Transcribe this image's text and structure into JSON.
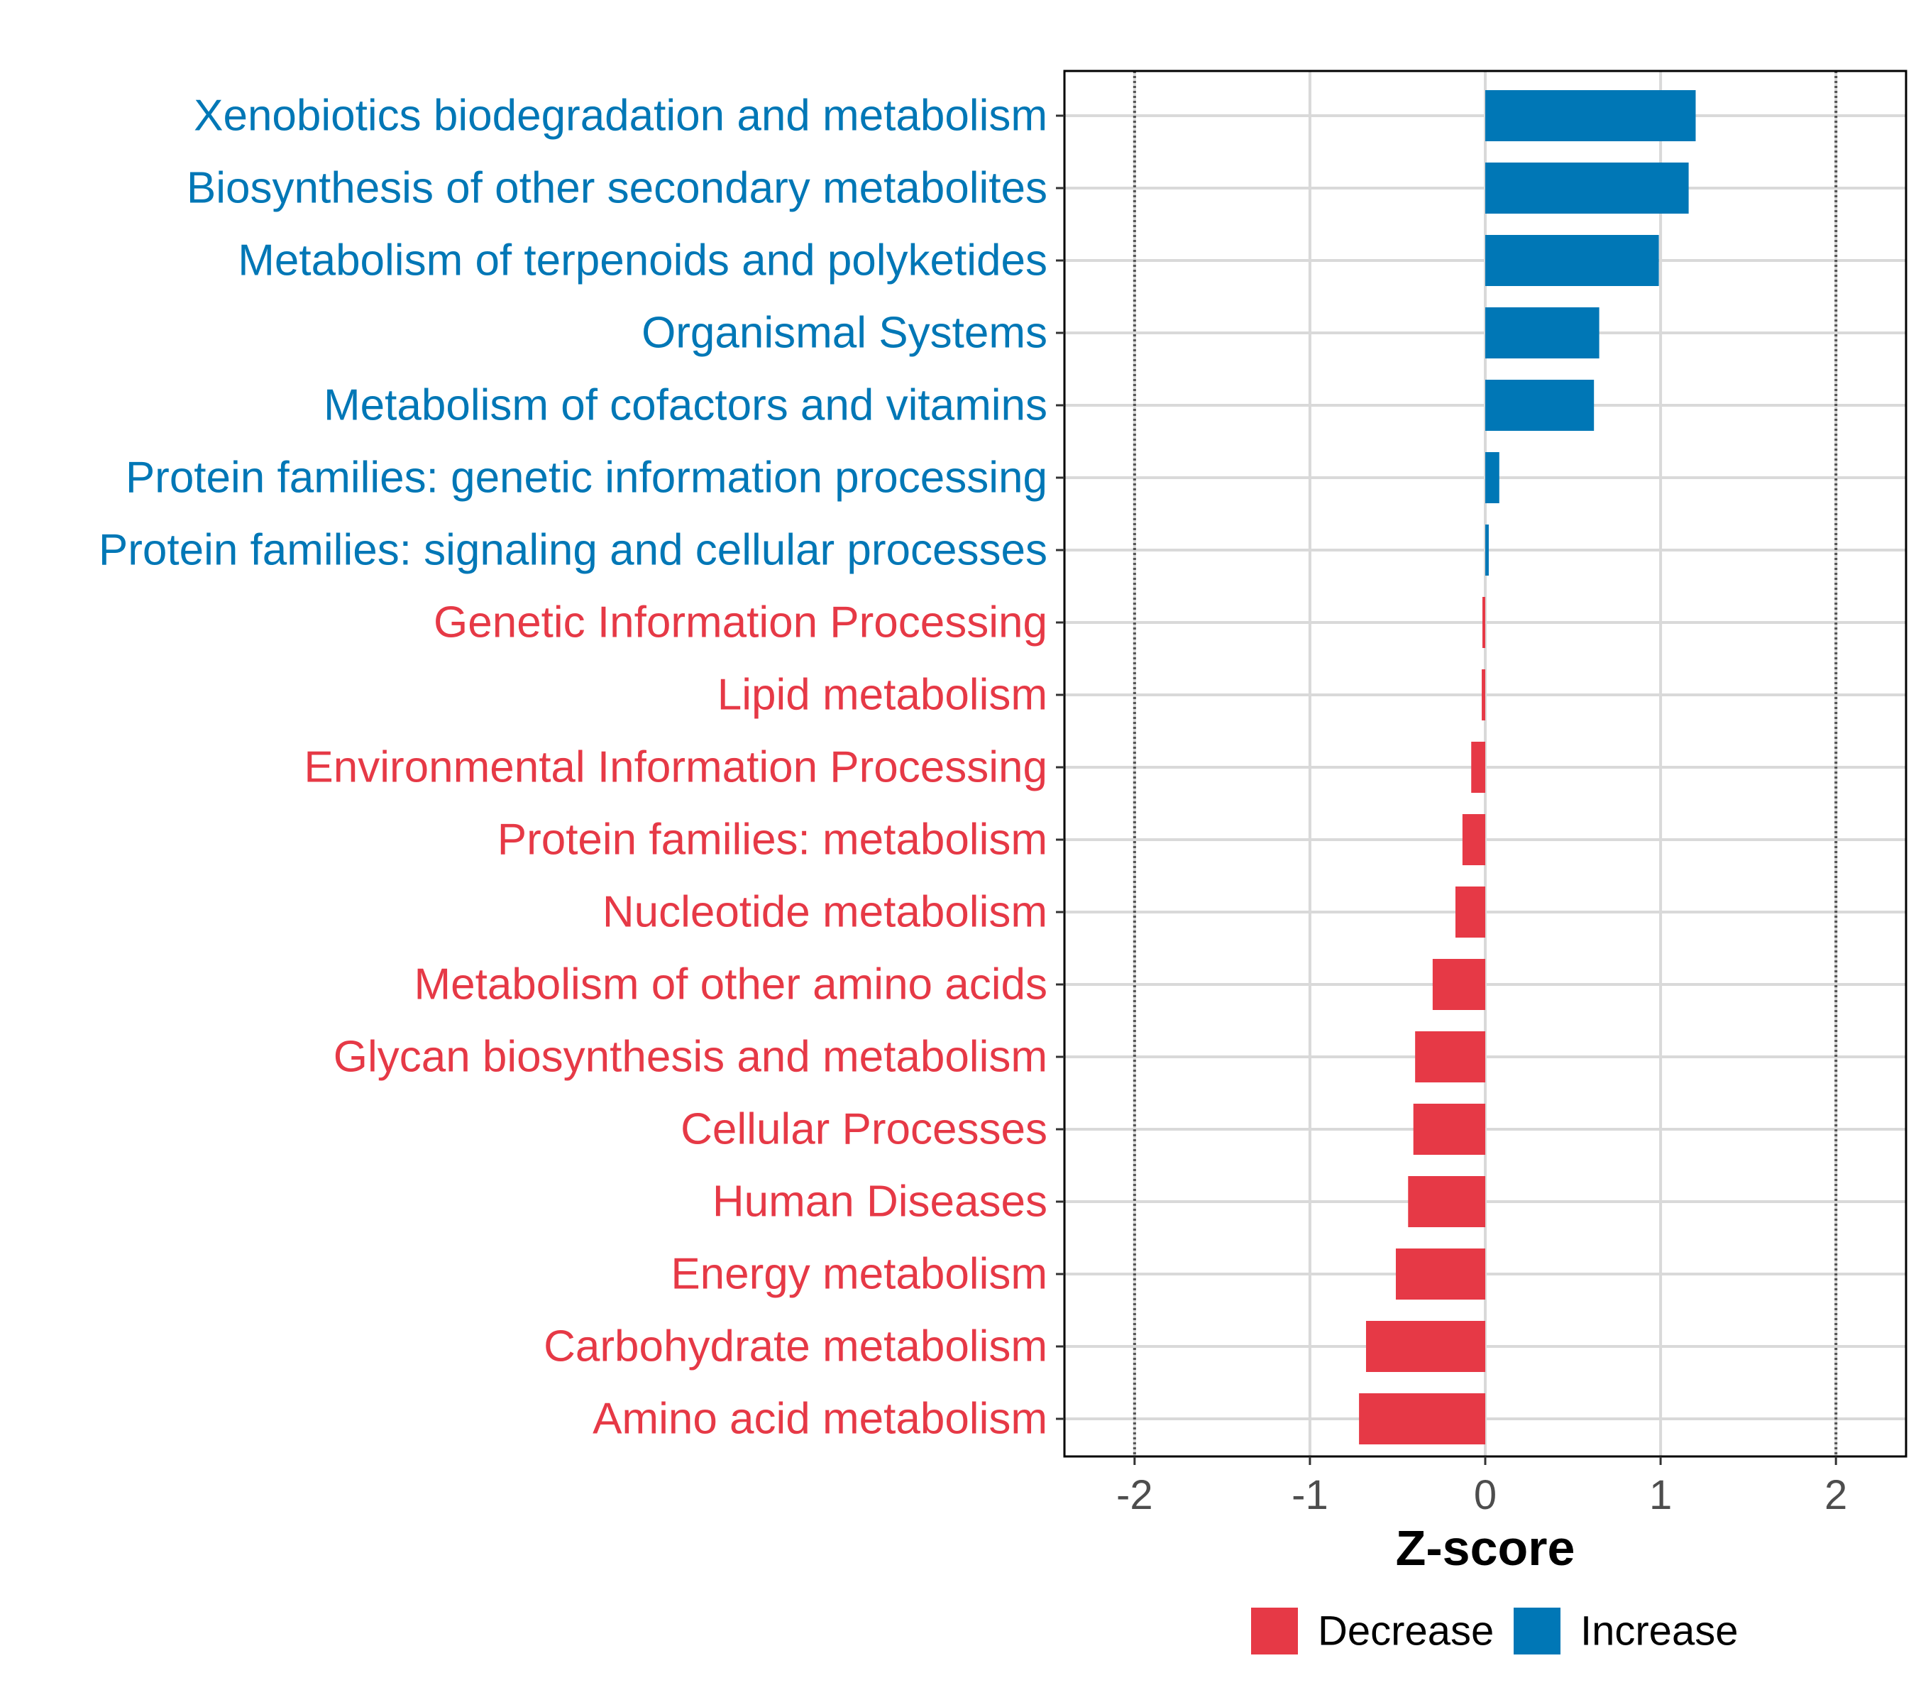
{
  "chart_data": {
    "type": "bar",
    "orientation": "horizontal",
    "xlabel": "Z-score",
    "ylabel": "",
    "xlim": [
      -2.4,
      2.4
    ],
    "x_ticks": [
      {
        "value": -2,
        "label": "-2"
      },
      {
        "value": -1,
        "label": "-1"
      },
      {
        "value": 0,
        "label": "0"
      },
      {
        "value": 1,
        "label": "1"
      },
      {
        "value": 2,
        "label": "2"
      }
    ],
    "reference_lines": [
      -2,
      2
    ],
    "categories": [
      "Xenobiotics biodegradation and metabolism",
      "Biosynthesis of other secondary metabolites",
      "Metabolism of terpenoids and polyketides",
      "Organismal Systems",
      "Metabolism of cofactors and vitamins",
      "Protein families: genetic information processing",
      "Protein families: signaling and cellular processes",
      "Genetic Information Processing",
      "Lipid metabolism",
      "Environmental Information Processing",
      "Protein families: metabolism",
      "Nucleotide metabolism",
      "Metabolism of other amino acids",
      "Glycan biosynthesis and metabolism",
      "Cellular Processes",
      "Human Diseases",
      "Energy metabolism",
      "Carbohydrate metabolism",
      "Amino acid metabolism"
    ],
    "values": [
      1.2,
      1.16,
      0.99,
      0.65,
      0.62,
      0.08,
      0.02,
      -0.01,
      -0.02,
      -0.08,
      -0.13,
      -0.17,
      -0.3,
      -0.4,
      -0.41,
      -0.44,
      -0.51,
      -0.68,
      -0.72
    ],
    "grid": true,
    "legend": {
      "position": "bottom",
      "entries": [
        {
          "name": "Decrease",
          "color": "#E63946"
        },
        {
          "name": "Increase",
          "color": "#0077B6"
        }
      ]
    }
  },
  "colors": {
    "increase": "#0077B6",
    "decrease": "#E63946",
    "grid": "#d9d9d9",
    "panel_border": "#000000",
    "ref_line": "#555555"
  }
}
